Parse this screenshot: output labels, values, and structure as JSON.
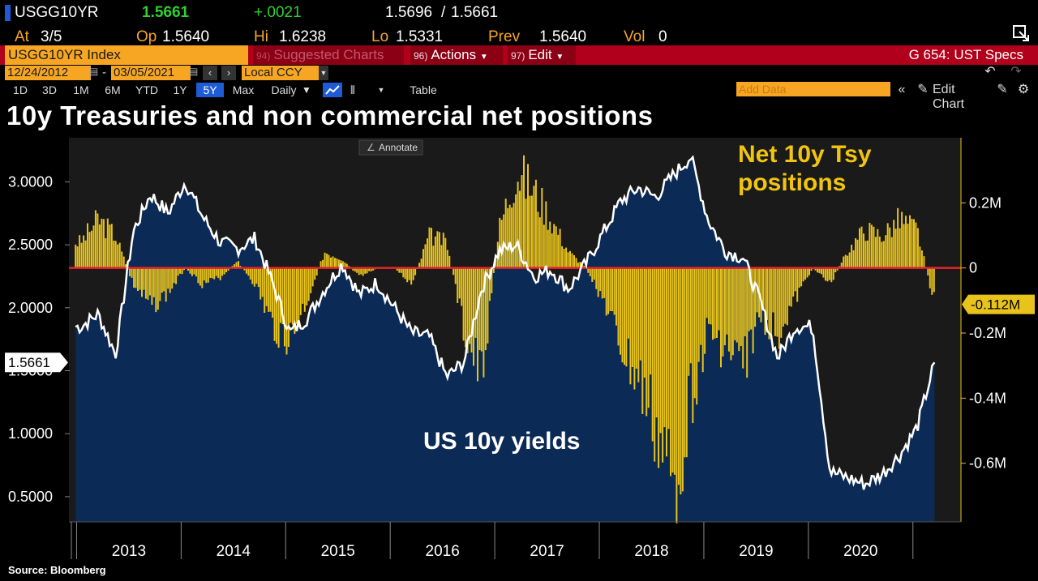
{
  "quote": {
    "ticker": "USGG10YR",
    "last": "1.5661",
    "change": "+.0021",
    "bid": "1.5696",
    "ask": "1.5661",
    "at_label": "At",
    "at_value": "3/5",
    "op_label": "Op",
    "op_value": "1.5640",
    "hi_label": "Hi",
    "hi_value": "1.6238",
    "lo_label": "Lo",
    "lo_value": "1.5331",
    "prev_label": "Prev",
    "prev_value": "1.5640",
    "vol_label": "Vol",
    "vol_value": "0"
  },
  "command_bar": {
    "security": "USGG10YR Index",
    "suggested_num": "94)",
    "suggested_label": "Suggested Charts",
    "actions_num": "96)",
    "actions_label": "Actions",
    "edit_num": "97)",
    "edit_label": "Edit",
    "spec": "G 654: UST Specs"
  },
  "date_range": {
    "start": "12/24/2012",
    "end": "03/05/2021",
    "currency": "Local CCY"
  },
  "toolbar": {
    "periods": [
      "1D",
      "3D",
      "1M",
      "6M",
      "YTD",
      "1Y",
      "5Y",
      "Max"
    ],
    "selected_period": "5Y",
    "frequency": "Daily",
    "table_label": "Table",
    "add_data_placeholder": "Add Data",
    "edit_chart_label": "Edit Chart"
  },
  "title": "10y Treasuries and non commercial net positions",
  "source": "Source: Bloomberg",
  "annotate_label": "Annotate",
  "colors": {
    "yield_line": "#ffffff",
    "yield_fill": "#0b2a55",
    "positions": "#e8c31c",
    "zero_line": "#e8212a",
    "accent": "#f6a623"
  },
  "chart_data": [
    {
      "type": "line",
      "name": "US 10y yields",
      "axis": "left",
      "x": [
        "2013-01",
        "2013-03",
        "2013-05",
        "2013-07",
        "2013-09",
        "2013-11",
        "2014-01",
        "2014-03",
        "2014-05",
        "2014-07",
        "2014-09",
        "2014-11",
        "2015-01",
        "2015-03",
        "2015-05",
        "2015-07",
        "2015-09",
        "2015-11",
        "2016-01",
        "2016-03",
        "2016-05",
        "2016-07",
        "2016-09",
        "2016-11",
        "2017-01",
        "2017-03",
        "2017-05",
        "2017-07",
        "2017-09",
        "2017-11",
        "2018-01",
        "2018-03",
        "2018-05",
        "2018-07",
        "2018-09",
        "2018-11",
        "2019-01",
        "2019-03",
        "2019-05",
        "2019-07",
        "2019-09",
        "2019-11",
        "2020-01",
        "2020-03",
        "2020-05",
        "2020-07",
        "2020-09",
        "2020-11",
        "2021-01",
        "2021-03"
      ],
      "y": [
        1.85,
        1.95,
        1.63,
        2.6,
        2.9,
        2.75,
        3.0,
        2.72,
        2.52,
        2.47,
        2.55,
        2.2,
        1.8,
        1.92,
        2.15,
        2.35,
        2.1,
        2.2,
        2.0,
        1.8,
        1.77,
        1.45,
        1.57,
        2.15,
        2.45,
        2.5,
        2.25,
        2.3,
        2.15,
        2.35,
        2.6,
        2.85,
        2.95,
        2.88,
        3.05,
        3.2,
        2.7,
        2.45,
        2.4,
        2.05,
        1.6,
        1.85,
        1.85,
        0.7,
        0.65,
        0.6,
        0.68,
        0.83,
        1.05,
        1.5661
      ],
      "ylim": [
        0.3,
        3.35
      ],
      "yticks": [
        "3.0000",
        "2.5000",
        "2.0000",
        "1.5000",
        "1.0000",
        "0.5000"
      ],
      "last_value_label": "1.5661"
    },
    {
      "type": "bar",
      "name": "Net 10y Tsy positions",
      "axis": "right",
      "x": [
        "2013-01",
        "2013-03",
        "2013-05",
        "2013-07",
        "2013-09",
        "2013-11",
        "2014-01",
        "2014-03",
        "2014-05",
        "2014-07",
        "2014-09",
        "2014-11",
        "2015-01",
        "2015-03",
        "2015-05",
        "2015-07",
        "2015-09",
        "2015-11",
        "2016-01",
        "2016-03",
        "2016-05",
        "2016-07",
        "2016-09",
        "2016-11",
        "2017-01",
        "2017-03",
        "2017-05",
        "2017-07",
        "2017-09",
        "2017-11",
        "2018-01",
        "2018-03",
        "2018-05",
        "2018-07",
        "2018-09",
        "2018-11",
        "2019-01",
        "2019-03",
        "2019-05",
        "2019-07",
        "2019-09",
        "2019-11",
        "2020-01",
        "2020-03",
        "2020-05",
        "2020-07",
        "2020-09",
        "2020-11",
        "2021-01",
        "2021-03"
      ],
      "values": [
        0.08,
        0.15,
        0.1,
        -0.05,
        -0.12,
        -0.08,
        0.0,
        -0.05,
        -0.03,
        0.02,
        -0.05,
        -0.18,
        -0.22,
        -0.1,
        0.05,
        0.03,
        -0.03,
        0.0,
        0.0,
        -0.05,
        0.1,
        0.08,
        -0.2,
        -0.35,
        0.12,
        0.3,
        0.24,
        0.15,
        0.05,
        0.0,
        -0.1,
        -0.25,
        -0.35,
        -0.5,
        -0.7,
        -0.4,
        -0.2,
        -0.25,
        -0.3,
        -0.15,
        -0.2,
        -0.1,
        0.0,
        -0.05,
        0.05,
        0.12,
        0.1,
        0.15,
        0.12,
        -0.112
      ],
      "ylim": [
        -0.78,
        0.4
      ],
      "yticks": [
        "0.2M",
        "0",
        "-0.2M",
        "-0.4M",
        "-0.6M"
      ],
      "last_value_label": "-0.112M"
    }
  ],
  "xaxis": {
    "labels": [
      "2013",
      "2014",
      "2015",
      "2016",
      "2017",
      "2018",
      "2019",
      "2020"
    ],
    "grid": false
  },
  "annotations": {
    "yields": "US 10y yields",
    "positions_line1": "Net 10y Tsy",
    "positions_line2": "positions"
  }
}
